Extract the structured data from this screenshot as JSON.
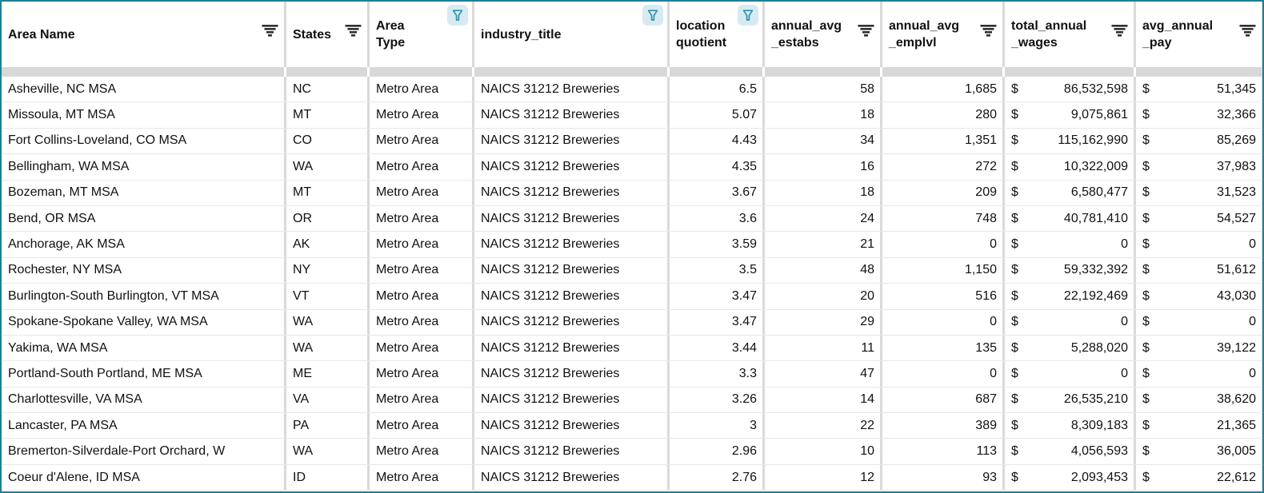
{
  "table": {
    "columns": [
      {
        "label": "Area Name",
        "icon": "filter-lines-icon",
        "align": "left",
        "filtered": false
      },
      {
        "label": "States",
        "icon": "filter-lines-icon",
        "align": "left",
        "filtered": false
      },
      {
        "label": "Area\nType",
        "icon": "filter-funnel-icon",
        "align": "left",
        "filtered": true
      },
      {
        "label": "industry_title",
        "icon": "filter-funnel-icon",
        "align": "left",
        "filtered": true
      },
      {
        "label": "location\nquotient",
        "icon": "filter-funnel-icon",
        "align": "right",
        "filtered": true
      },
      {
        "label": "annual_avg\n_estabs",
        "icon": "filter-lines-icon",
        "align": "right",
        "filtered": false
      },
      {
        "label": "annual_avg\n_emplvl",
        "icon": "filter-lines-icon",
        "align": "right",
        "filtered": false
      },
      {
        "label": "total_annual\n_wages",
        "icon": "filter-lines-icon",
        "align": "currency",
        "filtered": false
      },
      {
        "label": "avg_annual\n_pay",
        "icon": "filter-lines-icon",
        "align": "currency",
        "filtered": false
      }
    ],
    "currency_symbol": "$",
    "rows": [
      [
        "Asheville, NC MSA",
        "NC",
        "Metro Area",
        "NAICS 31212 Breweries",
        "6.5",
        "58",
        "1,685",
        "86,532,598",
        "51,345"
      ],
      [
        "Missoula, MT MSA",
        "MT",
        "Metro Area",
        "NAICS 31212 Breweries",
        "5.07",
        "18",
        "280",
        "9,075,861",
        "32,366"
      ],
      [
        "Fort Collins-Loveland, CO MSA",
        "CO",
        "Metro Area",
        "NAICS 31212 Breweries",
        "4.43",
        "34",
        "1,351",
        "115,162,990",
        "85,269"
      ],
      [
        "Bellingham, WA MSA",
        "WA",
        "Metro Area",
        "NAICS 31212 Breweries",
        "4.35",
        "16",
        "272",
        "10,322,009",
        "37,983"
      ],
      [
        "Bozeman, MT MSA",
        "MT",
        "Metro Area",
        "NAICS 31212 Breweries",
        "3.67",
        "18",
        "209",
        "6,580,477",
        "31,523"
      ],
      [
        "Bend, OR MSA",
        "OR",
        "Metro Area",
        "NAICS 31212 Breweries",
        "3.6",
        "24",
        "748",
        "40,781,410",
        "54,527"
      ],
      [
        "Anchorage, AK MSA",
        "AK",
        "Metro Area",
        "NAICS 31212 Breweries",
        "3.59",
        "21",
        "0",
        "0",
        "0"
      ],
      [
        "Rochester, NY MSA",
        "NY",
        "Metro Area",
        "NAICS 31212 Breweries",
        "3.5",
        "48",
        "1,150",
        "59,332,392",
        "51,612"
      ],
      [
        "Burlington-South Burlington, VT MSA",
        "VT",
        "Metro Area",
        "NAICS 31212 Breweries",
        "3.47",
        "20",
        "516",
        "22,192,469",
        "43,030"
      ],
      [
        "Spokane-Spokane Valley, WA MSA",
        "WA",
        "Metro Area",
        "NAICS 31212 Breweries",
        "3.47",
        "29",
        "0",
        "0",
        "0"
      ],
      [
        "Yakima, WA MSA",
        "WA",
        "Metro Area",
        "NAICS 31212 Breweries",
        "3.44",
        "11",
        "135",
        "5,288,020",
        "39,122"
      ],
      [
        "Portland-South Portland, ME MSA",
        "ME",
        "Metro Area",
        "NAICS 31212 Breweries",
        "3.3",
        "47",
        "0",
        "0",
        "0"
      ],
      [
        "Charlottesville, VA MSA",
        "VA",
        "Metro Area",
        "NAICS 31212 Breweries",
        "3.26",
        "14",
        "687",
        "26,535,210",
        "38,620"
      ],
      [
        "Lancaster, PA MSA",
        "PA",
        "Metro Area",
        "NAICS 31212 Breweries",
        "3",
        "22",
        "389",
        "8,309,183",
        "21,365"
      ],
      [
        "Bremerton-Silverdale-Port Orchard, W",
        "WA",
        "Metro Area",
        "NAICS 31212 Breweries",
        "2.96",
        "10",
        "113",
        "4,056,593",
        "36,005"
      ],
      [
        "Coeur d'Alene, ID MSA",
        "ID",
        "Metro Area",
        "NAICS 31212 Breweries",
        "2.76",
        "12",
        "93",
        "2,093,453",
        "22,612"
      ]
    ]
  },
  "colors": {
    "accent_teal": "#1f7f96",
    "filter_icon_teal": "#2e94ad",
    "filter_icon_bg": "#d8eaf1",
    "col_sep": "#d9d9d9",
    "row_sep": "#e8e8e8",
    "band": "#d8d8d8"
  }
}
